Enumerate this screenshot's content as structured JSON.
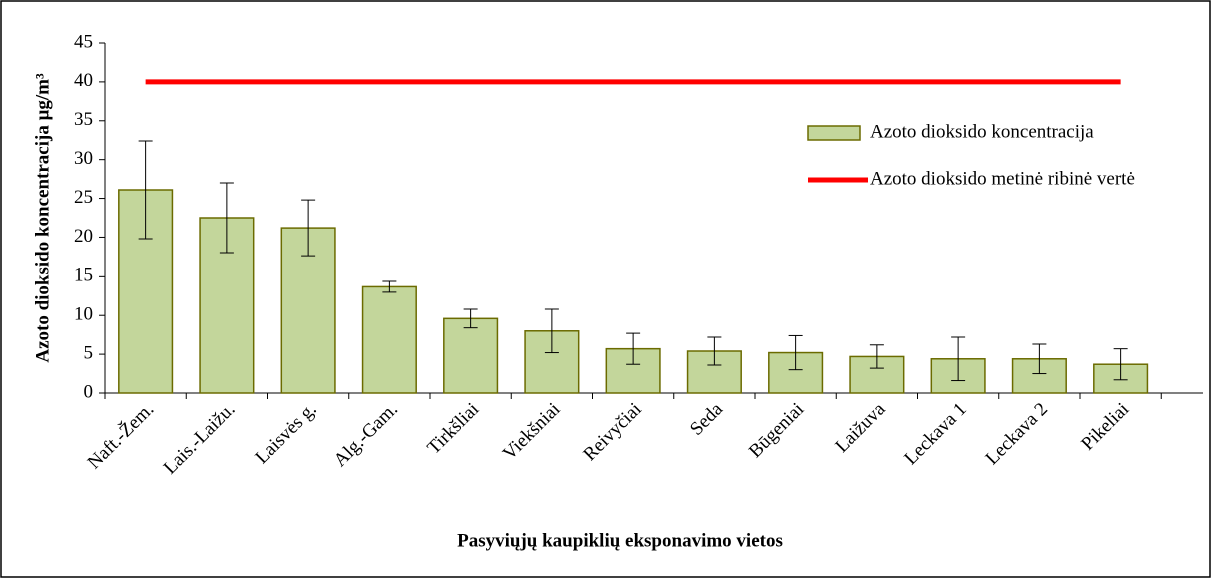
{
  "chart_data": {
    "type": "bar",
    "y_label": "Azoto dioksido koncentracija μg/m³",
    "x_label": "Pasyviųjų kaupiklių eksponavimo vietos",
    "categories": [
      "Naft.-Žem.",
      "Lais.-Laižu.",
      "Laisvės g.",
      "Alg.-Gam.",
      "Tirkšliai",
      "Viekšniai",
      "Reivyčiai",
      "Seda",
      "Būgeniai",
      "Laižuva",
      "Leckava 1",
      "Leckava 2",
      "Pikeliai"
    ],
    "series": [
      {
        "name": "Azoto dioksido koncentracija",
        "type": "bar",
        "color": "#c3d69b",
        "edge": "#6b6b00",
        "values": [
          26.1,
          22.5,
          21.2,
          13.7,
          9.6,
          8.0,
          5.7,
          5.4,
          5.2,
          4.7,
          4.4,
          4.4,
          3.7
        ],
        "errors": [
          6.3,
          4.5,
          3.6,
          0.7,
          1.2,
          2.8,
          2.0,
          1.8,
          2.2,
          1.5,
          2.8,
          1.9,
          2.0
        ]
      },
      {
        "name": "Azoto dioksido metinė ribinė vertė",
        "type": "line",
        "color": "#ff0000",
        "values": [
          40,
          40,
          40,
          40,
          40,
          40,
          40,
          40,
          40,
          40,
          40,
          40,
          40
        ]
      }
    ],
    "ylim": [
      0,
      45
    ],
    "yticks": [
      0,
      5,
      10,
      15,
      20,
      25,
      30,
      35,
      40,
      45
    ],
    "grid": false,
    "legend": "upper right"
  }
}
